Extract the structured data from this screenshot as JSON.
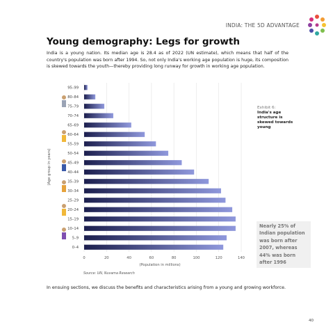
{
  "header": {
    "title": "INDIA: THE 5D ADVANTAGE"
  },
  "title": "Young demography: Legs for growth",
  "intro": "India is a young nation. Its median age is 28.4 as of 2022 (UN estimate), which means that half of the country's population was born after 1994. So, not only India's working age population is huge, its composition is skewed towards the youth—thereby providing long runway for growth in working age population.",
  "exhibit": {
    "label": "Exhibit 6:",
    "text": "India's age structure is skewed towards young"
  },
  "callout": "Nearly 25% of Indian population was born after 2007, whereas 44% was born after 1996",
  "source": "Source: UN, Nuvama Research",
  "closing": "In ensuing sections, we discuss the benefits and characteristics arising from a young and growing workforce.",
  "page_number": "40",
  "chart_data": {
    "type": "bar",
    "orientation": "horizontal",
    "categories": [
      "95–99",
      "80–84",
      "75–79",
      "70–74",
      "65–69",
      "60–64",
      "55–59",
      "50–54",
      "45–49",
      "40–44",
      "35–39",
      "30–34",
      "25–29",
      "20–24",
      "15–19",
      "10–14",
      "5–9",
      "0–4"
    ],
    "values": [
      3,
      10,
      18,
      26,
      42,
      54,
      64,
      75,
      87,
      98,
      111,
      122,
      126,
      132,
      135,
      135,
      127,
      124
    ],
    "xlim": [
      0,
      140
    ],
    "xticks": [
      0,
      20,
      40,
      60,
      80,
      100,
      120,
      140
    ],
    "xlabel": "(Population in millions)",
    "ylabel": "(Age group in years)",
    "gradient": [
      "#1c1f4e",
      "#8f98dc"
    ],
    "grid": true
  }
}
